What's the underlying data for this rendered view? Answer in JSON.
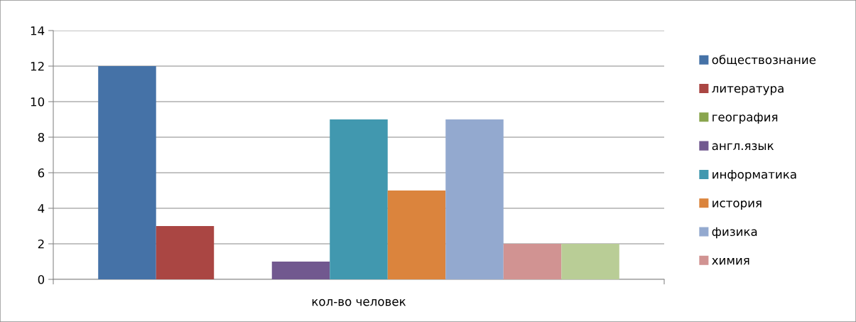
{
  "chart_data": {
    "type": "bar",
    "categories": [
      "кол-во человек"
    ],
    "series": [
      {
        "name": "обществознание",
        "color": "#4572a7",
        "values": [
          12
        ]
      },
      {
        "name": "литература",
        "color": "#aa4643",
        "values": [
          3
        ]
      },
      {
        "name": "география",
        "color": "#89a54e",
        "values": [
          0
        ]
      },
      {
        "name": "англ.язык",
        "color": "#71588f",
        "values": [
          1
        ]
      },
      {
        "name": "информатика",
        "color": "#4198af",
        "values": [
          9
        ]
      },
      {
        "name": "история",
        "color": "#db843d",
        "values": [
          5
        ]
      },
      {
        "name": "физика",
        "color": "#93a9cf",
        "values": [
          9
        ]
      },
      {
        "name": "химия",
        "color": "#d19392",
        "values": [
          2
        ]
      },
      {
        "color": "#b9cd96",
        "values": [
          2
        ]
      }
    ],
    "ylim": [
      0,
      14
    ],
    "yticks": [
      0,
      2,
      4,
      6,
      8,
      10,
      12,
      14
    ],
    "grid": "y",
    "legend": "right"
  }
}
